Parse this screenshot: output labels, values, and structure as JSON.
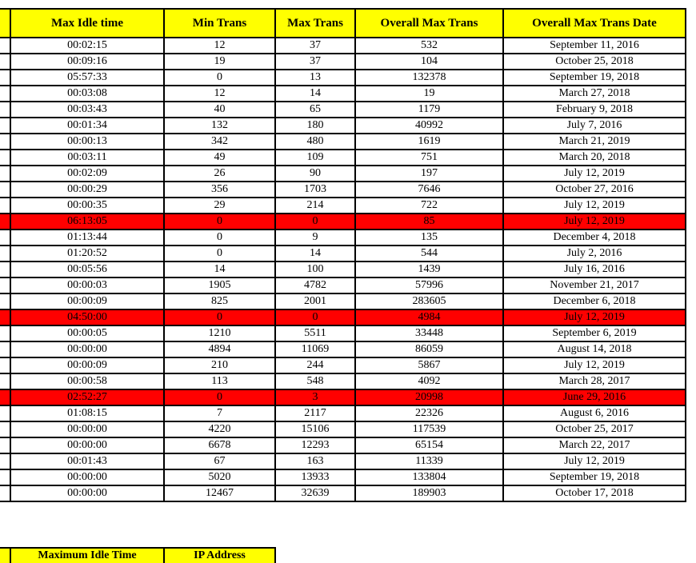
{
  "columns": [
    "Max Idle time",
    "Min Trans",
    "Max Trans",
    "Overall Max Trans",
    "Overall Max Trans Date"
  ],
  "rows": [
    {
      "idle": "00:02:15",
      "min": "12",
      "max": "37",
      "overall": "532",
      "date": "September 11, 2016",
      "highlight": false
    },
    {
      "idle": "00:09:16",
      "min": "19",
      "max": "37",
      "overall": "104",
      "date": "October 25, 2018",
      "highlight": false
    },
    {
      "idle": "05:57:33",
      "min": "0",
      "max": "13",
      "overall": "132378",
      "date": "September 19, 2018",
      "highlight": false
    },
    {
      "idle": "00:03:08",
      "min": "12",
      "max": "14",
      "overall": "19",
      "date": "March 27, 2018",
      "highlight": false
    },
    {
      "idle": "00:03:43",
      "min": "40",
      "max": "65",
      "overall": "1179",
      "date": "February 9, 2018",
      "highlight": false
    },
    {
      "idle": "00:01:34",
      "min": "132",
      "max": "180",
      "overall": "40992",
      "date": "July 7, 2016",
      "highlight": false
    },
    {
      "idle": "00:00:13",
      "min": "342",
      "max": "480",
      "overall": "1619",
      "date": "March 21, 2019",
      "highlight": false
    },
    {
      "idle": "00:03:11",
      "min": "49",
      "max": "109",
      "overall": "751",
      "date": "March 20, 2018",
      "highlight": false
    },
    {
      "idle": "00:02:09",
      "min": "26",
      "max": "90",
      "overall": "197",
      "date": "July 12, 2019",
      "highlight": false
    },
    {
      "idle": "00:00:29",
      "min": "356",
      "max": "1703",
      "overall": "7646",
      "date": "October 27, 2016",
      "highlight": false
    },
    {
      "idle": "00:00:35",
      "min": "29",
      "max": "214",
      "overall": "722",
      "date": "July 12, 2019",
      "highlight": false
    },
    {
      "idle": "06:13:05",
      "min": "0",
      "max": "0",
      "overall": "85",
      "date": "July 12, 2019",
      "highlight": true
    },
    {
      "idle": "01:13:44",
      "min": "0",
      "max": "9",
      "overall": "135",
      "date": "December 4, 2018",
      "highlight": false
    },
    {
      "idle": "01:20:52",
      "min": "0",
      "max": "14",
      "overall": "544",
      "date": "July 2, 2016",
      "highlight": false
    },
    {
      "idle": "00:05:56",
      "min": "14",
      "max": "100",
      "overall": "1439",
      "date": "July 16, 2016",
      "highlight": false
    },
    {
      "idle": "00:00:03",
      "min": "1905",
      "max": "4782",
      "overall": "57996",
      "date": "November 21, 2017",
      "highlight": false
    },
    {
      "idle": "00:00:09",
      "min": "825",
      "max": "2001",
      "overall": "283605",
      "date": "December 6, 2018",
      "highlight": false
    },
    {
      "idle": "04:50:00",
      "min": "0",
      "max": "0",
      "overall": "4984",
      "date": "July 12, 2019",
      "highlight": true
    },
    {
      "idle": "00:00:05",
      "min": "1210",
      "max": "5511",
      "overall": "33448",
      "date": "September 6, 2019",
      "highlight": false
    },
    {
      "idle": "00:00:00",
      "min": "4894",
      "max": "11069",
      "overall": "86059",
      "date": "August 14, 2018",
      "highlight": false
    },
    {
      "idle": "00:00:09",
      "min": "210",
      "max": "244",
      "overall": "5867",
      "date": "July 12, 2019",
      "highlight": false
    },
    {
      "idle": "00:00:58",
      "min": "113",
      "max": "548",
      "overall": "4092",
      "date": "March 28, 2017",
      "highlight": false
    },
    {
      "idle": "02:52:27",
      "min": "0",
      "max": "3",
      "overall": "20998",
      "date": "June 29, 2016",
      "highlight": true
    },
    {
      "idle": "01:08:15",
      "min": "7",
      "max": "2117",
      "overall": "22326",
      "date": "August 6, 2016",
      "highlight": false
    },
    {
      "idle": "00:00:00",
      "min": "4220",
      "max": "15106",
      "overall": "117539",
      "date": "October 25, 2017",
      "highlight": false
    },
    {
      "idle": "00:00:00",
      "min": "6678",
      "max": "12293",
      "overall": "65154",
      "date": "March 22, 2017",
      "highlight": false
    },
    {
      "idle": "00:01:43",
      "min": "67",
      "max": "163",
      "overall": "11339",
      "date": "July 12, 2019",
      "highlight": false
    },
    {
      "idle": "00:00:00",
      "min": "5020",
      "max": "13933",
      "overall": "133804",
      "date": "September 19, 2018",
      "highlight": false
    },
    {
      "idle": "00:00:00",
      "min": "12467",
      "max": "32639",
      "overall": "189903",
      "date": "October 17, 2018",
      "highlight": false
    }
  ],
  "footer": [
    "Maximum Idle Time",
    "IP Address"
  ],
  "colors": {
    "header_bg": "#ffff00",
    "highlight_bg": "#ff0000",
    "border": "#000000"
  }
}
